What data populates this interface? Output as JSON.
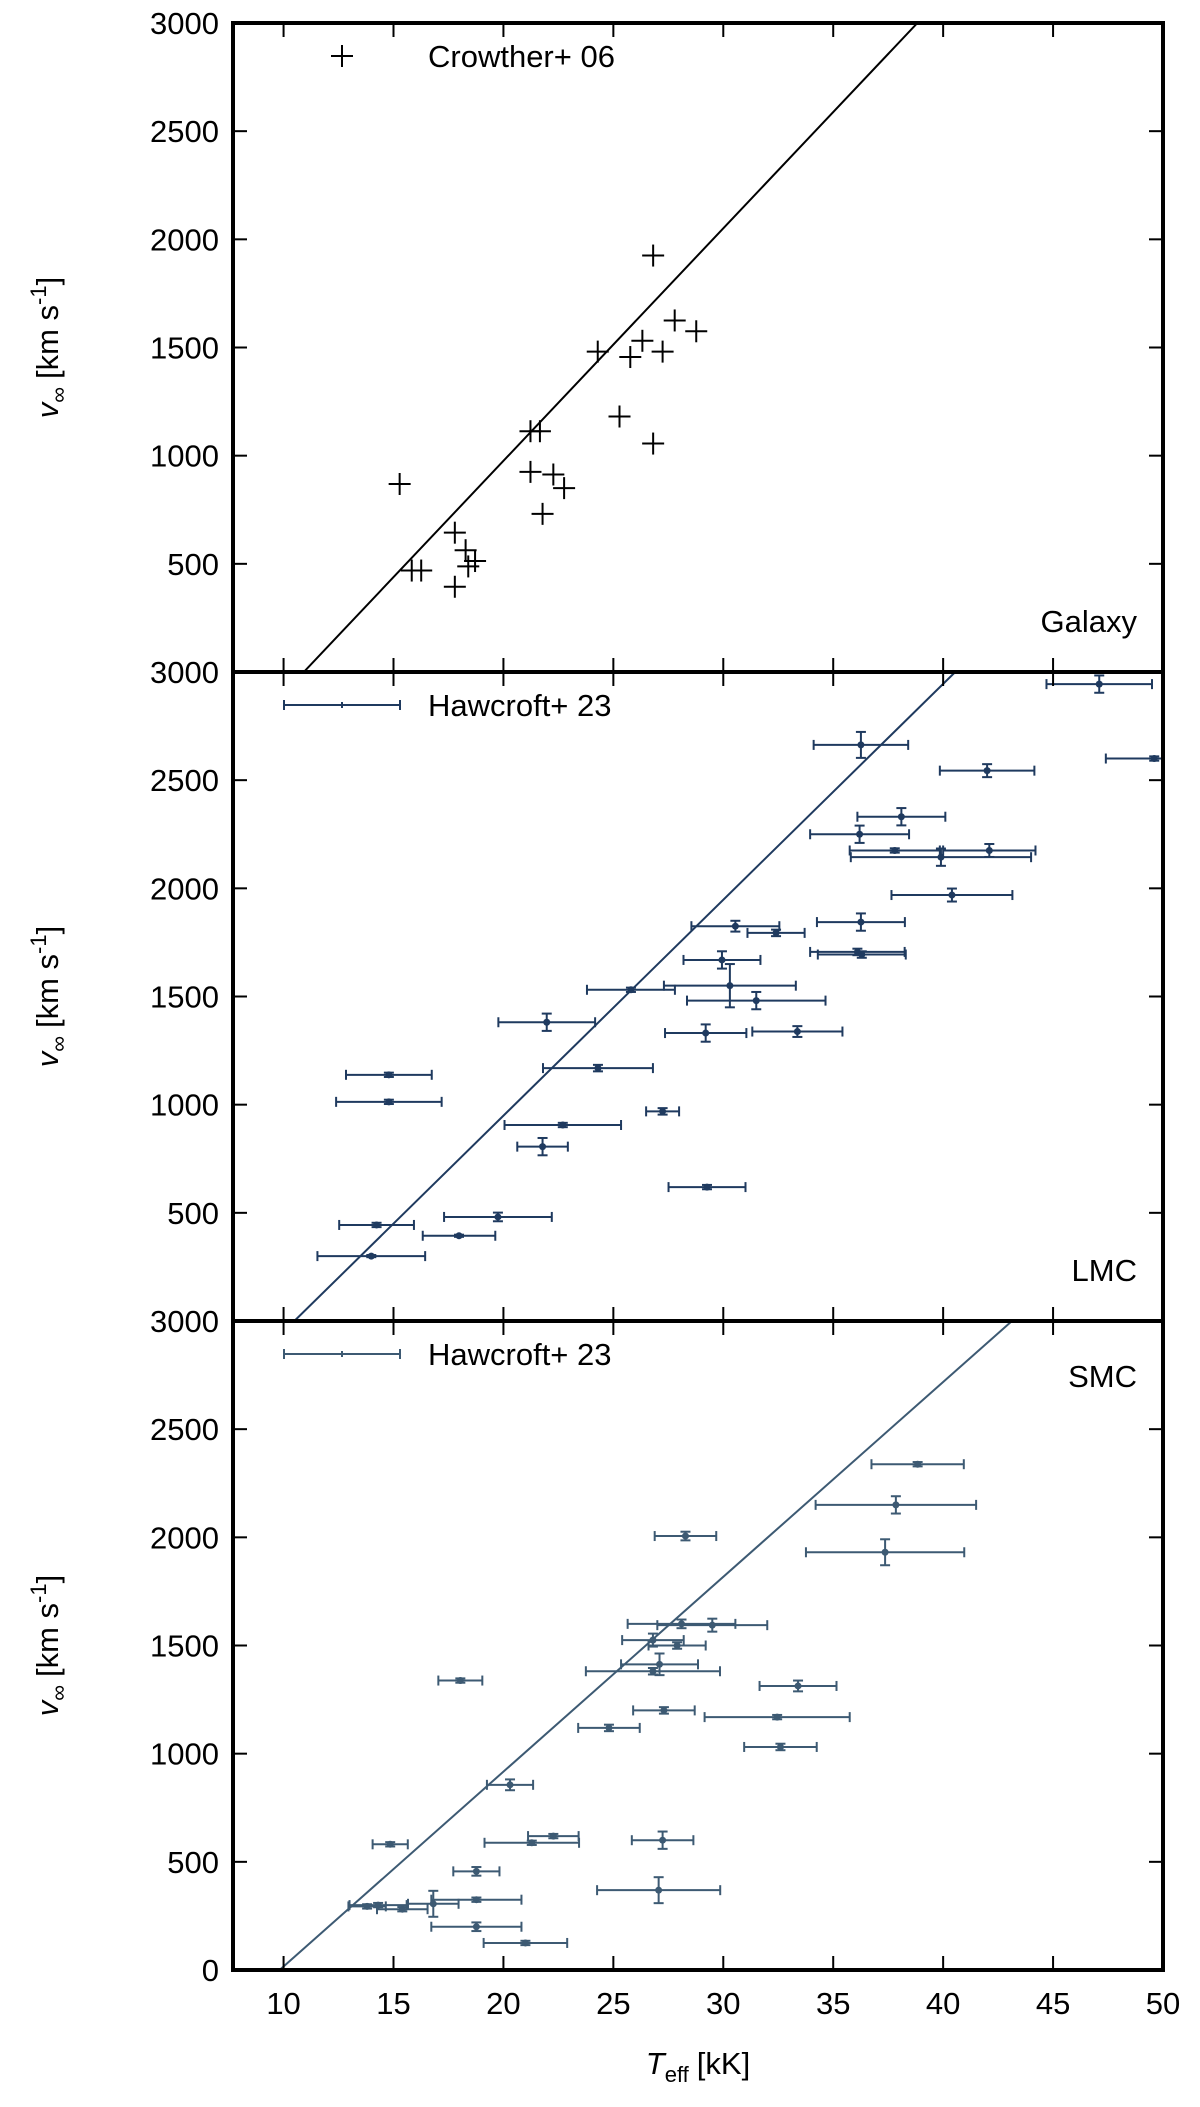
{
  "chart_data": [
    {
      "type": "scatter",
      "label": "Galaxy",
      "label_loc": "lower right",
      "legend": "upper left",
      "ylim": [
        0,
        3000
      ],
      "yticks": [
        500,
        1000,
        1500,
        2000,
        2500,
        3000
      ],
      "ylabel": {
        "symbol": "v",
        "subscript": "∞",
        "unit": "[km s",
        "exponent": "-1",
        "close": "]"
      },
      "fit": {
        "x": [
          10.92,
          38.83
        ],
        "values": [
          0,
          3000
        ],
        "color": "#000000"
      },
      "series": [
        {
          "name": "Crowther+ 06",
          "color": "#000000",
          "x": [
            15.28,
            15.83,
            16.26,
            17.79,
            17.79,
            18.28,
            18.4,
            18.71,
            21.23,
            21.66,
            21.23,
            22.27,
            22.76,
            21.78,
            24.29,
            25.28,
            25.77,
            26.32,
            26.81,
            26.81,
            27.24,
            27.79,
            28.77
          ],
          "values": [
            869,
            469,
            469,
            644,
            394,
            563,
            488,
            513,
            1113,
            1113,
            925,
            913,
            850,
            731,
            1481,
            1181,
            1456,
            1531,
            1925,
            1056,
            1481,
            1625,
            1575
          ]
        }
      ]
    },
    {
      "type": "errorbar",
      "label": "LMC",
      "label_loc": "lower right",
      "legend": "upper left",
      "ylim": [
        0,
        3000
      ],
      "yticks": [
        500,
        1000,
        1500,
        2000,
        2500,
        3000
      ],
      "ylabel": {
        "symbol": "v",
        "subscript": "∞",
        "unit": "[km s",
        "exponent": "-1",
        "close": "]"
      },
      "fit": {
        "x": [
          10.49,
          40.55
        ],
        "values": [
          0,
          3000
        ],
        "color": "#1f3a5f"
      },
      "series": [
        {
          "name": "Hawcroft+ 23",
          "color": "#1f3a5f",
          "x": [
            47.1,
            49.6,
            36.26,
            42.0,
            38.1,
            36.2,
            37.8,
            39.9,
            42.1,
            40.4,
            36.26,
            30.55,
            32.4,
            36.1,
            36.3,
            29.94,
            30.3,
            31.5,
            25.8,
            21.97,
            29.2,
            33.37,
            14.79,
            24.3,
            14.79,
            27.24,
            22.7,
            21.78,
            29.26,
            19.75,
            14.23,
            17.98,
            13.99
          ],
          "xerr": [
            2.4,
            2.2,
            2.15,
            2.15,
            2.0,
            2.25,
            2.05,
            4.1,
            2.1,
            2.75,
            2.0,
            2.0,
            1.3,
            2.15,
            2.0,
            1.75,
            3.0,
            3.15,
            2.0,
            2.2,
            1.85,
            2.05,
            1.95,
            2.5,
            2.4,
            0.75,
            2.65,
            1.15,
            1.75,
            2.45,
            1.7,
            1.65,
            2.45
          ],
          "values": [
            2944,
            2600,
            2663,
            2544,
            2331,
            2250,
            2175,
            2144,
            2175,
            1969,
            1844,
            1825,
            1794,
            1706,
            1694,
            1669,
            1550,
            1481,
            1531,
            1381,
            1331,
            1338,
            1138,
            1169,
            1013,
            969,
            906,
            806,
            619,
            481,
            444,
            394,
            300
          ],
          "yerr": [
            40,
            10,
            60,
            30,
            40,
            40,
            10,
            40,
            30,
            30,
            40,
            25,
            15,
            15,
            15,
            40,
            100,
            40,
            10,
            40,
            40,
            25,
            10,
            15,
            10,
            15,
            10,
            40,
            10,
            20,
            10,
            5,
            5
          ]
        }
      ]
    },
    {
      "type": "errorbar",
      "label": "SMC",
      "label_loc": "upper right",
      "legend": "upper left",
      "ylim": [
        0,
        3000
      ],
      "yticks": [
        0,
        500,
        1000,
        1500,
        2000,
        2500,
        3000
      ],
      "ylabel": {
        "symbol": "v",
        "subscript": "∞",
        "unit": "[km s",
        "exponent": "-1",
        "close": "]"
      },
      "xlim": [
        7.7,
        50
      ],
      "xticks": [
        10,
        15,
        20,
        25,
        30,
        35,
        40,
        45,
        50
      ],
      "xlabel": {
        "symbol": "T",
        "subscript": "eff",
        "unit": "[kK]"
      },
      "fit": {
        "x": [
          9.82,
          43.13
        ],
        "values": [
          0,
          3000
        ],
        "color": "#3d5a73"
      },
      "series": [
        {
          "name": "Hawcroft+ 23",
          "color": "#3d5a73",
          "x": [
            38.84,
            37.85,
            37.36,
            28.28,
            28.1,
            29.5,
            26.8,
            27.9,
            26.8,
            27.1,
            33.4,
            18.04,
            27.3,
            32.45,
            24.8,
            32.6,
            20.3,
            14.85,
            22.27,
            21.29,
            27.24,
            18.77,
            27.06,
            18.77,
            16.81,
            14.3,
            13.8,
            15.4,
            18.77,
            21.0
          ],
          "xerr": [
            2.1,
            3.65,
            3.6,
            1.4,
            2.45,
            2.5,
            1.4,
            1.3,
            3.05,
            1.75,
            1.75,
            1.0,
            1.4,
            3.3,
            1.4,
            1.65,
            1.05,
            0.8,
            1.15,
            2.15,
            1.4,
            1.05,
            2.8,
            2.05,
            1.15,
            1.3,
            0.85,
            1.15,
            2.05,
            1.9
          ],
          "values": [
            2338,
            2150,
            1931,
            2006,
            1600,
            1594,
            1525,
            1500,
            1381,
            1413,
            1313,
            1338,
            1200,
            1169,
            1119,
            1031,
            856,
            581,
            619,
            588,
            600,
            456,
            369,
            325,
            306,
            300,
            294,
            281,
            200,
            125
          ],
          "yerr": [
            10,
            40,
            60,
            20,
            20,
            30,
            30,
            15,
            15,
            50,
            25,
            10,
            15,
            10,
            15,
            15,
            25,
            10,
            10,
            10,
            40,
            20,
            60,
            10,
            60,
            10,
            10,
            10,
            20,
            10
          ]
        }
      ]
    }
  ]
}
